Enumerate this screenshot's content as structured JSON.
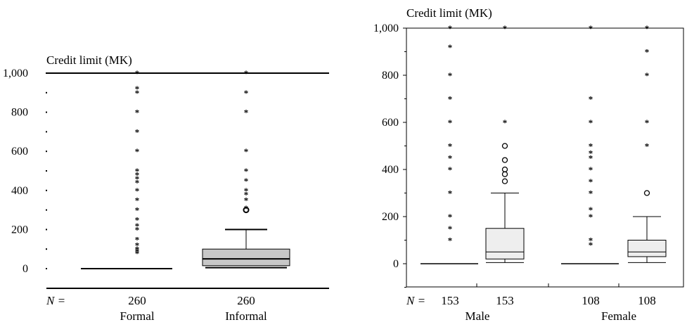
{
  "chart_data": [
    {
      "type": "boxplot",
      "ylabel": "Credit limit (MK)",
      "ylim": [
        -40,
        1000
      ],
      "yticks": [
        0,
        200,
        400,
        600,
        800,
        1000
      ],
      "ytick_labels": [
        "0",
        "200",
        "400",
        "600",
        "800",
        "1,000"
      ],
      "n_label": "N =",
      "groups": [
        {
          "name": "Formal",
          "n": "260",
          "q1": 0,
          "median": 0,
          "q3": 0,
          "whisker_low": 0,
          "whisker_high": 0,
          "outliers": [],
          "extremes": [
            80,
            90,
            100,
            120,
            150,
            200,
            220,
            250,
            300,
            350,
            400,
            440,
            460,
            480,
            500,
            600,
            700,
            800,
            900,
            920,
            1000
          ]
        },
        {
          "name": "Informal",
          "n": "260",
          "q1": 15,
          "median": 50,
          "q3": 100,
          "whisker_low": 5,
          "whisker_high": 200,
          "outliers": [
            300
          ],
          "extremes": [
            310,
            350,
            380,
            400,
            450,
            500,
            600,
            800,
            900,
            1000
          ]
        }
      ]
    },
    {
      "type": "boxplot",
      "ylabel": "Credit limit (MK)",
      "ylim": [
        -100,
        1000
      ],
      "yticks": [
        0,
        200,
        400,
        600,
        800,
        1000
      ],
      "ytick_labels": [
        "0",
        "200",
        "400",
        "600",
        "800",
        "1,000"
      ],
      "n_label": "N =",
      "categories": [
        "Male",
        "Female"
      ],
      "groups": [
        {
          "category": "Male",
          "n": "153",
          "q1": 0,
          "median": 0,
          "q3": 0,
          "whisker_low": 0,
          "whisker_high": 0,
          "outliers": [],
          "extremes": [
            100,
            150,
            200,
            300,
            400,
            450,
            500,
            600,
            700,
            800,
            920,
            1000
          ]
        },
        {
          "category": "Male",
          "n": "153",
          "q1": 20,
          "median": 50,
          "q3": 150,
          "whisker_low": 5,
          "whisker_high": 300,
          "outliers": [
            350,
            380,
            400,
            440,
            500
          ],
          "extremes": [
            600,
            1000
          ]
        },
        {
          "category": "Female",
          "n": "108",
          "q1": 0,
          "median": 0,
          "q3": 0,
          "whisker_low": 0,
          "whisker_high": 0,
          "outliers": [],
          "extremes": [
            80,
            100,
            200,
            230,
            300,
            350,
            400,
            450,
            470,
            500,
            600,
            700,
            1000
          ]
        },
        {
          "category": "Female",
          "n": "108",
          "q1": 30,
          "median": 50,
          "q3": 100,
          "whisker_low": 5,
          "whisker_high": 200,
          "outliers": [
            300
          ],
          "extremes": [
            500,
            600,
            800,
            900,
            1000
          ]
        }
      ]
    }
  ]
}
